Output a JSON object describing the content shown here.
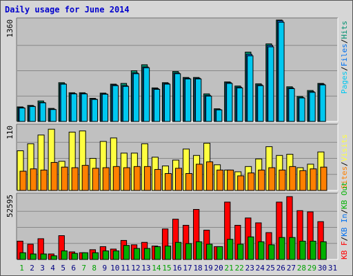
{
  "title": "Daily usage for June 2014",
  "colors": {
    "pages": "#00c8f0",
    "files": "#0070f0",
    "hits": "#009070",
    "visits": "#ffff40",
    "sites": "#ff8000",
    "kb_in": "#0070f0",
    "kb_out": "#00b000",
    "kb_f": "#ff0000",
    "panel_bg": "#c0c0c0",
    "grid": "#888888"
  },
  "chart_data": [
    {
      "type": "bar",
      "name": "hits-files-pages",
      "ymax_label": "1360",
      "ylim": [
        0,
        1360
      ],
      "x": [
        1,
        2,
        3,
        4,
        5,
        6,
        7,
        8,
        9,
        10,
        11,
        12,
        13,
        14,
        15,
        16,
        17,
        18,
        19,
        20,
        21,
        22,
        23,
        24,
        25,
        26,
        27,
        28,
        29,
        30,
        31
      ],
      "series": [
        {
          "name": "Hits",
          "color": "#009070",
          "values": [
            195,
            215,
            275,
            175,
            520,
            385,
            385,
            310,
            380,
            500,
            510,
            680,
            760,
            450,
            520,
            670,
            590,
            590,
            370,
            170,
            530,
            475,
            930,
            505,
            1040,
            1360,
            465,
            335,
            415,
            510,
            0
          ]
        },
        {
          "name": "Files",
          "color": "#0070f0",
          "values": [
            185,
            205,
            255,
            165,
            505,
            375,
            375,
            300,
            370,
            490,
            480,
            650,
            730,
            440,
            510,
            650,
            580,
            580,
            350,
            160,
            520,
            460,
            900,
            490,
            1020,
            1350,
            450,
            320,
            400,
            500,
            0
          ]
        },
        {
          "name": "Pages",
          "color": "#00c8f0",
          "values": [
            180,
            200,
            250,
            160,
            500,
            370,
            370,
            295,
            365,
            480,
            470,
            640,
            720,
            430,
            500,
            640,
            570,
            570,
            340,
            155,
            510,
            450,
            880,
            480,
            1000,
            1330,
            440,
            315,
            390,
            490,
            0
          ]
        }
      ],
      "legend": [
        "Pages",
        "Files",
        "Hits"
      ]
    },
    {
      "type": "bar",
      "name": "visits-sites",
      "ymax_label": "110",
      "ylim": [
        0,
        110
      ],
      "x": [
        1,
        2,
        3,
        4,
        5,
        6,
        7,
        8,
        9,
        10,
        11,
        12,
        13,
        14,
        15,
        16,
        17,
        18,
        19,
        20,
        21,
        22,
        23,
        24,
        25,
        26,
        27,
        28,
        29,
        30,
        31
      ],
      "series": [
        {
          "name": "Visits",
          "color": "#ffff40",
          "values": [
            68,
            80,
            95,
            105,
            50,
            100,
            102,
            55,
            84,
            90,
            64,
            64,
            80,
            57,
            42,
            52,
            71,
            60,
            81,
            44,
            35,
            32,
            41,
            54,
            75,
            60,
            62,
            39,
            45,
            66,
            0
          ]
        },
        {
          "name": "Sites",
          "color": "#ff8000",
          "values": [
            33,
            37,
            35,
            48,
            40,
            39,
            43,
            38,
            39,
            41,
            39,
            41,
            41,
            36,
            29,
            38,
            29,
            45,
            49,
            35,
            35,
            25,
            30,
            35,
            39,
            35,
            41,
            34,
            37,
            40,
            0
          ]
        }
      ],
      "legend": [
        "Sites",
        "Visits"
      ]
    },
    {
      "type": "bar",
      "name": "kbytes",
      "ymax_label": "52595",
      "ylim": [
        0,
        52595
      ],
      "x": [
        1,
        2,
        3,
        4,
        5,
        6,
        7,
        8,
        9,
        10,
        11,
        12,
        13,
        14,
        15,
        16,
        17,
        18,
        19,
        20,
        21,
        22,
        23,
        24,
        25,
        26,
        27,
        28,
        29,
        30,
        31
      ],
      "series": [
        {
          "name": "KB F",
          "color": "#ff0000",
          "values": [
            15000,
            12500,
            17000,
            4500,
            19500,
            6200,
            5500,
            8000,
            10500,
            8500,
            15600,
            12000,
            14000,
            11000,
            25000,
            33000,
            28000,
            41000,
            24000,
            10500,
            47000,
            28000,
            34000,
            30000,
            22000,
            47000,
            51500,
            40000,
            39000,
            31000,
            0
          ]
        },
        {
          "name": "KB In",
          "color": "#0070f0",
          "values": [
            0,
            0,
            0,
            0,
            0,
            0,
            0,
            0,
            0,
            0,
            0,
            0,
            0,
            0,
            0,
            0,
            0,
            0,
            0,
            0,
            0,
            0,
            0,
            0,
            0,
            0,
            0,
            0,
            0,
            0,
            0
          ]
        },
        {
          "name": "KB Out",
          "color": "#00b000",
          "values": [
            5500,
            4500,
            4500,
            3000,
            7000,
            5000,
            5500,
            5500,
            7000,
            7000,
            11500,
            9000,
            9000,
            10500,
            11000,
            14000,
            13000,
            14500,
            12500,
            10500,
            16500,
            12500,
            18500,
            14500,
            12000,
            18000,
            18000,
            15000,
            15000,
            14500,
            0
          ]
        }
      ],
      "legend": [
        "KB F",
        "KB In",
        "KB Out"
      ]
    }
  ],
  "x_axis": {
    "labels": [
      "1",
      "2",
      "3",
      "4",
      "5",
      "6",
      "7",
      "8",
      "9",
      "10",
      "11",
      "12",
      "13",
      "14",
      "15",
      "16",
      "17",
      "18",
      "19",
      "20",
      "21",
      "22",
      "23",
      "24",
      "25",
      "26",
      "27",
      "28",
      "29",
      "30",
      "31"
    ],
    "weekend_days": [
      1,
      7,
      8,
      14,
      15,
      21,
      22,
      28,
      29
    ],
    "weekday_color": "#000080",
    "weekend_color": "#00a000"
  }
}
